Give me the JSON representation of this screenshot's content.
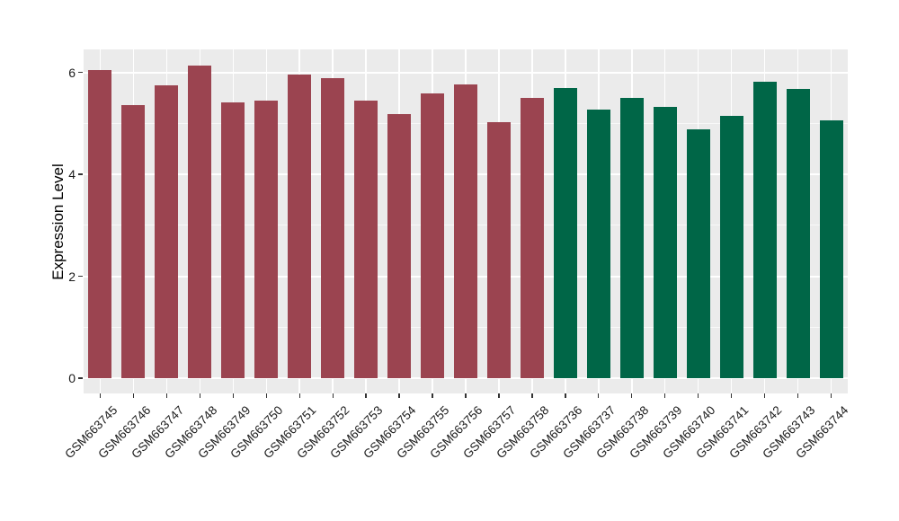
{
  "chart_data": {
    "type": "bar",
    "title": "",
    "xlabel": "",
    "ylabel": "Expression Level",
    "ylim": [
      0,
      6.45
    ],
    "yticks": [
      0,
      2,
      4,
      6
    ],
    "yticks_minor": [
      1,
      3,
      5
    ],
    "grid": "on",
    "legend": "none",
    "categories": [
      "GSM663745",
      "GSM663746",
      "GSM663747",
      "GSM663748",
      "GSM663749",
      "GSM663750",
      "GSM663751",
      "GSM663752",
      "GSM663753",
      "GSM663754",
      "GSM663755",
      "GSM663756",
      "GSM663757",
      "GSM663758",
      "GSM663736",
      "GSM663737",
      "GSM663738",
      "GSM663739",
      "GSM663740",
      "GSM663741",
      "GSM663742",
      "GSM663743",
      "GSM663744"
    ],
    "values": [
      6.05,
      5.36,
      5.75,
      6.13,
      5.41,
      5.45,
      5.96,
      5.89,
      5.45,
      5.18,
      5.59,
      5.77,
      5.02,
      5.5,
      5.69,
      5.27,
      5.49,
      5.32,
      4.88,
      5.15,
      5.81,
      5.67,
      5.06
    ],
    "color_groups": [
      {
        "name": "group-1",
        "color": "#9B4450",
        "from": 0,
        "to": 13
      },
      {
        "name": "group-2",
        "color": "#006647",
        "from": 14,
        "to": 22
      }
    ]
  },
  "colors": {
    "panel_bg": "#EBEBEB",
    "grid_major": "#FFFFFF",
    "tick_text": "#1A1A1A",
    "axis_title_text": "#000000"
  }
}
